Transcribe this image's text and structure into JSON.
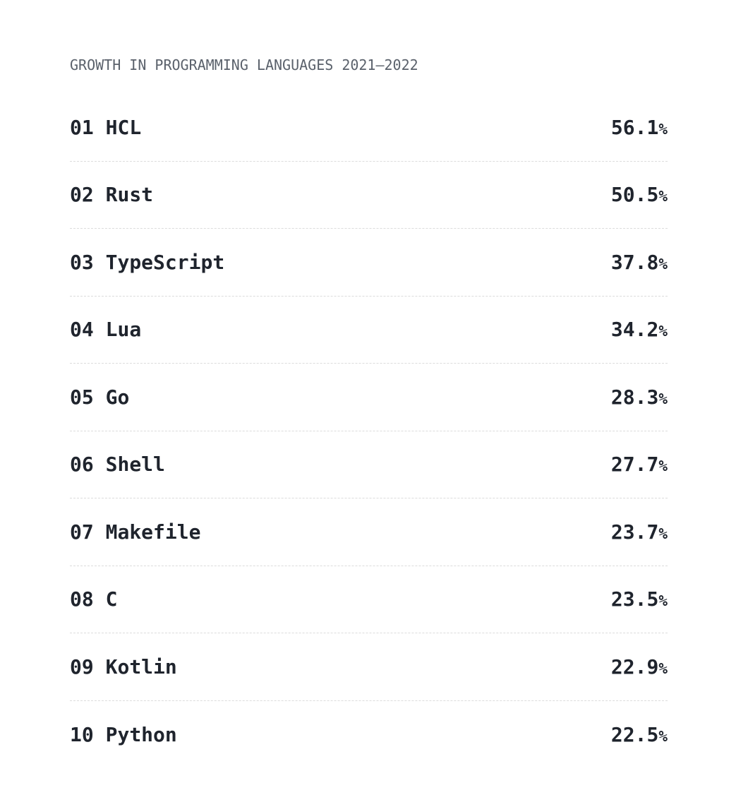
{
  "header": {
    "title": "GROWTH IN PROGRAMMING LANGUAGES 2021–2022"
  },
  "list": {
    "rows": [
      {
        "rank": "01",
        "name": "HCL",
        "value": "56.1",
        "unit": "%"
      },
      {
        "rank": "02",
        "name": "Rust",
        "value": "50.5",
        "unit": "%"
      },
      {
        "rank": "03",
        "name": "TypeScript",
        "value": "37.8",
        "unit": "%"
      },
      {
        "rank": "04",
        "name": "Lua",
        "value": "34.2",
        "unit": "%"
      },
      {
        "rank": "05",
        "name": "Go",
        "value": "28.3",
        "unit": "%"
      },
      {
        "rank": "06",
        "name": "Shell",
        "value": "27.7",
        "unit": "%"
      },
      {
        "rank": "07",
        "name": "Makefile",
        "value": "23.7",
        "unit": "%"
      },
      {
        "rank": "08",
        "name": "C",
        "value": "23.5",
        "unit": "%"
      },
      {
        "rank": "09",
        "name": "Kotlin",
        "value": "22.9",
        "unit": "%"
      },
      {
        "rank": "10",
        "name": "Python",
        "value": "22.5",
        "unit": "%"
      }
    ]
  },
  "colors": {
    "background": "#ffffff",
    "text_primary": "#1f242d",
    "text_secondary": "#5a616b",
    "divider": "#dcdcdc"
  },
  "chart_data": {
    "type": "table",
    "title": "GROWTH IN PROGRAMMING LANGUAGES 2021–2022",
    "columns": [
      "rank",
      "language",
      "growth_percent"
    ],
    "rows": [
      [
        "01",
        "HCL",
        56.1
      ],
      [
        "02",
        "Rust",
        50.5
      ],
      [
        "03",
        "TypeScript",
        37.8
      ],
      [
        "04",
        "Lua",
        34.2
      ],
      [
        "05",
        "Go",
        28.3
      ],
      [
        "06",
        "Shell",
        27.7
      ],
      [
        "07",
        "Makefile",
        23.7
      ],
      [
        "08",
        "C",
        23.5
      ],
      [
        "09",
        "Kotlin",
        22.9
      ],
      [
        "10",
        "Python",
        22.5
      ]
    ],
    "ylabel": "growth_percent",
    "value_range": [
      22.5,
      56.1
    ],
    "sort": "descending"
  }
}
